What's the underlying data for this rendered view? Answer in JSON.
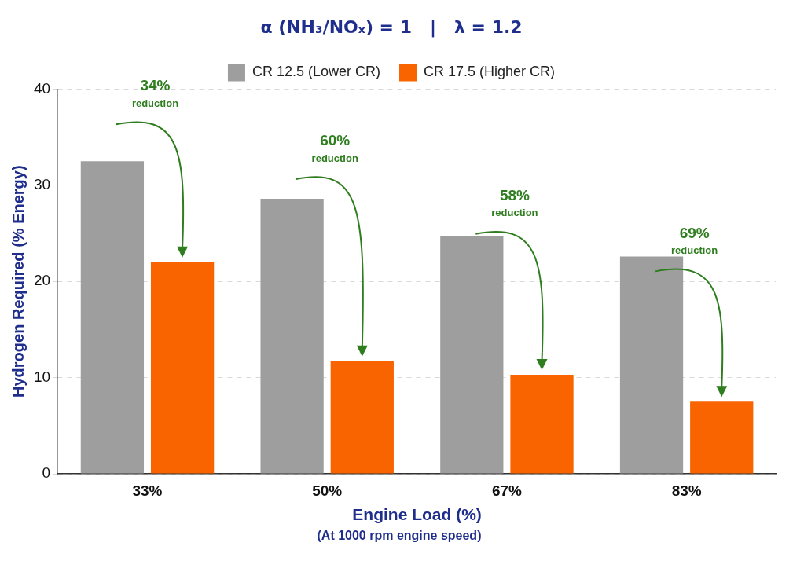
{
  "chart_data": {
    "type": "bar",
    "title": "α (NH₃/NOₓ) = 1   |   λ = 1.2",
    "xlabel": "Engine Load (%)",
    "ylabel": "Hydrogen Required (% Energy)",
    "categories": [
      "33%",
      "50%",
      "67%",
      "83%"
    ],
    "series": [
      {
        "name": "CR 12.5 (Lower CR)",
        "color": "#9e9e9e",
        "values": [
          32.5,
          28.6,
          24.7,
          22.6
        ]
      },
      {
        "name": "CR 17.5 (Higher CR)",
        "color": "#f96400",
        "values": [
          22.0,
          11.7,
          10.3,
          7.5
        ]
      }
    ],
    "ylim": [
      0,
      40
    ],
    "yticks": [
      0,
      10,
      20,
      30,
      40
    ],
    "grid": "y",
    "legend": "top",
    "annotations": [
      "34% reduction",
      "60% reduction",
      "58% reduction",
      "69% reduction",
      "(At 1000 rpm engine speed)"
    ]
  }
}
